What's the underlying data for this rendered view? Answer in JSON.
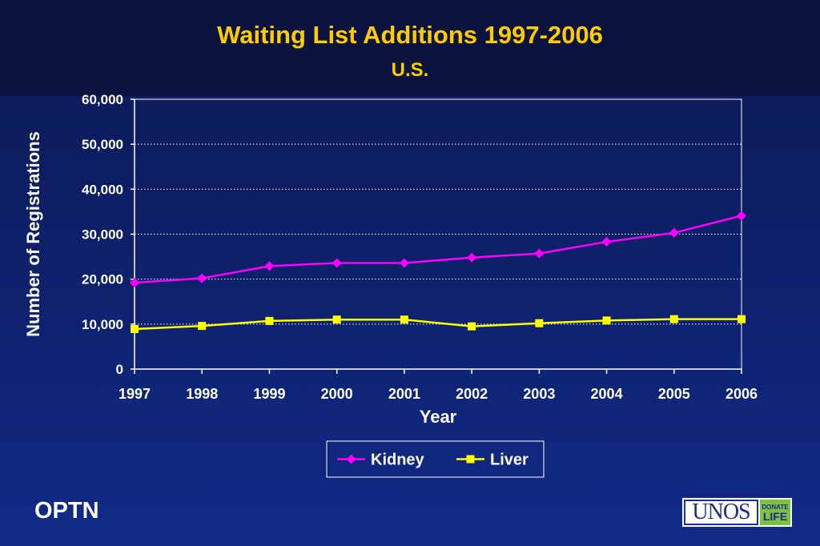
{
  "header": {
    "title": "Waiting List Additions 1997-2006",
    "subtitle": "U.S."
  },
  "chart_data": {
    "type": "line",
    "title": "Waiting List Additions 1997-2006",
    "subtitle": "U.S.",
    "xlabel": "Year",
    "ylabel": "Number of Registrations",
    "categories": [
      "1997",
      "1998",
      "1999",
      "2000",
      "2001",
      "2002",
      "2003",
      "2004",
      "2005",
      "2006"
    ],
    "ylim": [
      0,
      60000
    ],
    "yticks": [
      0,
      10000,
      20000,
      30000,
      40000,
      50000,
      60000
    ],
    "ytick_labels": [
      "0",
      "10,000",
      "20,000",
      "30,000",
      "40,000",
      "50,000",
      "60,000"
    ],
    "grid": "horizontal dotted",
    "legend": "bottom-center",
    "series": [
      {
        "name": "Kidney",
        "color": "#ff00ff",
        "marker": "diamond",
        "values": [
          19200,
          20200,
          22900,
          23600,
          23600,
          24800,
          25700,
          28300,
          30300,
          34100
        ]
      },
      {
        "name": "Liver",
        "color": "#ffff00",
        "marker": "square",
        "values": [
          8900,
          9600,
          10700,
          11000,
          11000,
          9500,
          10200,
          10800,
          11100,
          11100
        ]
      }
    ]
  },
  "footer": {
    "org_label": "OPTN",
    "logo_text": "UNOS",
    "logo_badge_top": "DONATE",
    "logo_badge_bottom": "LIFE",
    "badge_color": "#7cc242"
  }
}
